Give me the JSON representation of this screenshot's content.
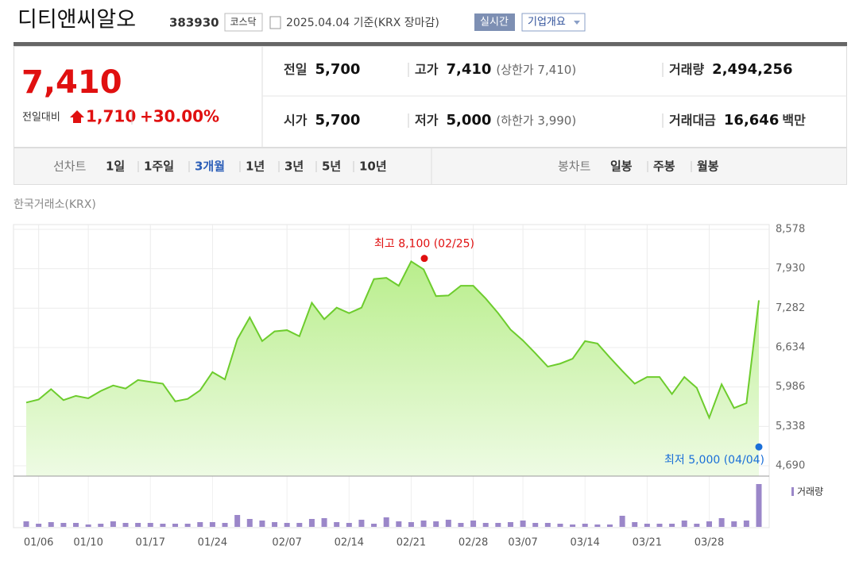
{
  "header": {
    "title": "디티앤씨알오",
    "code": "383930",
    "market": "코스닥",
    "date": "2025.04.04 기준(KRX 장마감)",
    "realtime": "실시간",
    "company_info": "기업개요"
  },
  "summary": {
    "price": "7,410",
    "change_label": "전일대비",
    "change": "1,710",
    "change_rate": "+30.00%",
    "items": [
      {
        "label": "전일",
        "value": "5,700"
      },
      {
        "label": "고가",
        "value": "7,410",
        "note": "(상한가 7,410)"
      },
      {
        "label": "거래량",
        "value": "2,494,256"
      },
      {
        "label": "시가",
        "value": "5,700"
      },
      {
        "label": "저가",
        "value": "5,000",
        "note": "(하한가 3,990)"
      },
      {
        "label": "거래대금",
        "value": "16,646",
        "unit": "백만"
      }
    ]
  },
  "tabs": {
    "line_chart": "선차트",
    "periods": [
      "1일",
      "1주일",
      "3개월",
      "1년",
      "3년",
      "5년",
      "10년"
    ],
    "selected": 2,
    "candle_chart": "봉차트",
    "candle_periods": [
      "일봉",
      "주봉",
      "월봉"
    ]
  },
  "source": "한국거래소(KRX)",
  "chart_data": {
    "type": "line",
    "categories": [
      null,
      "01/06",
      null,
      null,
      null,
      "01/10",
      null,
      null,
      null,
      null,
      "01/17",
      null,
      null,
      null,
      null,
      "01/24",
      null,
      null,
      null,
      null,
      null,
      "02/07",
      null,
      null,
      null,
      null,
      "02/14",
      null,
      null,
      null,
      null,
      "02/21",
      null,
      null,
      null,
      null,
      "02/28",
      null,
      null,
      null,
      "03/07",
      null,
      null,
      null,
      null,
      "03/14",
      null,
      null,
      null,
      null,
      "03/21",
      null,
      null,
      null,
      null,
      "03/28",
      null,
      null,
      null,
      null
    ],
    "series": [
      {
        "color": "#6dcc2d",
        "values": [
          5730,
          5780,
          5950,
          5770,
          5840,
          5800,
          5920,
          6010,
          5960,
          6100,
          6070,
          6040,
          5750,
          5790,
          5930,
          6230,
          6110,
          6770,
          7130,
          6740,
          6900,
          6920,
          6820,
          7370,
          7100,
          7290,
          7200,
          7290,
          7760,
          7780,
          7650,
          8050,
          7920,
          7480,
          7490,
          7650,
          7650,
          7440,
          7200,
          6930,
          6750,
          6540,
          6320,
          6370,
          6450,
          6740,
          6700,
          6470,
          6250,
          6040,
          6150,
          6150,
          5870,
          6150,
          5970,
          5480,
          6030,
          5640,
          5720,
          7410
        ]
      },
      {
        "name": "거래량",
        "type": "bar",
        "color": "#9b87c9",
        "values": [
          323000,
          185000,
          277000,
          231000,
          231000,
          139000,
          185000,
          323000,
          231000,
          231000,
          231000,
          185000,
          185000,
          185000,
          277000,
          277000,
          231000,
          693000,
          462000,
          370000,
          277000,
          231000,
          231000,
          462000,
          508000,
          277000,
          231000,
          416000,
          185000,
          554000,
          323000,
          277000,
          370000,
          323000,
          416000,
          231000,
          370000,
          231000,
          231000,
          277000,
          370000,
          231000,
          231000,
          185000,
          139000,
          185000,
          139000,
          139000,
          647000,
          277000,
          185000,
          185000,
          185000,
          370000,
          185000,
          323000,
          508000,
          323000,
          370000,
          2494256
        ]
      }
    ],
    "ylim": [
      4690,
      8578
    ],
    "yticks": [
      {
        "value": 4690,
        "label": "4,690"
      },
      {
        "value": 5338,
        "label": "5,338"
      },
      {
        "value": 5986,
        "label": "5,986"
      },
      {
        "value": 6634,
        "label": "6,634"
      },
      {
        "value": 7282,
        "label": "7,282"
      },
      {
        "value": 7930,
        "label": "7,930"
      },
      {
        "value": 8578,
        "label": "8,578"
      }
    ],
    "grid": true,
    "annotations": [
      {
        "text": "최고 8,100 (02/25)",
        "value": 8100,
        "color": "#e01010"
      },
      {
        "text": "최저 5,000 (04/04)",
        "value": 5000,
        "color": "#1a6fd8"
      }
    ]
  }
}
